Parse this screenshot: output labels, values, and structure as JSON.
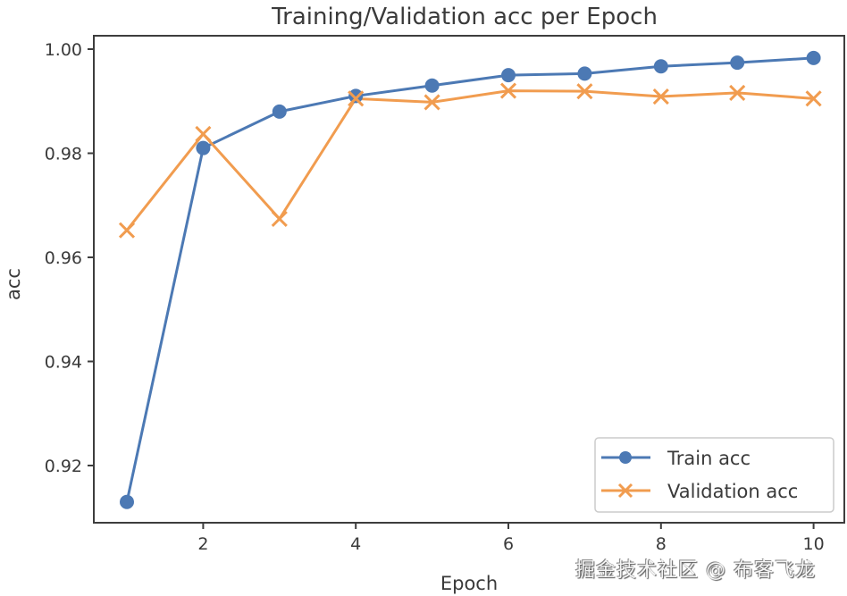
{
  "chart_data": {
    "type": "line",
    "title": "Training/Validation acc per Epoch",
    "xlabel": "Epoch",
    "ylabel": "acc",
    "x": [
      1,
      2,
      3,
      4,
      5,
      6,
      7,
      8,
      9,
      10
    ],
    "series": [
      {
        "name": "Train acc",
        "color": "#4c79b4",
        "marker": "circle",
        "values": [
          0.913,
          0.981,
          0.988,
          0.991,
          0.993,
          0.995,
          0.9953,
          0.9967,
          0.9974,
          0.9983
        ]
      },
      {
        "name": "Validation acc",
        "color": "#f19c4f",
        "marker": "x",
        "values": [
          0.9652,
          0.9837,
          0.9674,
          0.9905,
          0.9898,
          0.992,
          0.9919,
          0.9909,
          0.9916,
          0.9905
        ]
      }
    ],
    "xticks": [
      2,
      4,
      6,
      8,
      10
    ],
    "yticks": [
      "0.92",
      "0.94",
      "0.96",
      "0.98",
      "1.00"
    ],
    "xlim": [
      0.55,
      10.45
    ],
    "ylim": [
      0.9088,
      1.0026
    ],
    "grid": false,
    "legend_position": "lower right"
  },
  "watermark": "掘金技术社区 @ 布客飞龙"
}
